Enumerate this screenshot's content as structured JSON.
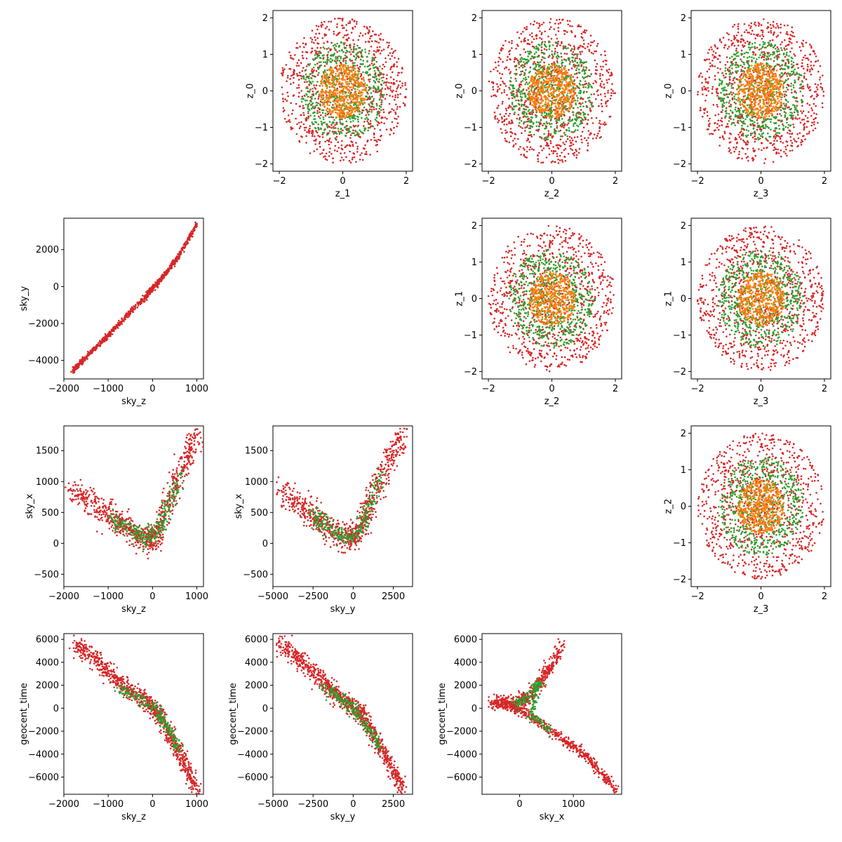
{
  "chart_data": {
    "type": "scatter",
    "colors": {
      "outer": "#d62728",
      "middle": "#2ca02c",
      "inner": "#ff7f0e"
    },
    "panels": [
      {
        "id": "z1-z0",
        "row": 0,
        "col": 1,
        "xlabel": "z_1",
        "ylabel": "z_0",
        "xlim": [
          -2.2,
          2.2
        ],
        "ylim": [
          -2.2,
          2.2
        ],
        "xticks": [
          -2,
          0,
          2
        ],
        "yticks": [
          -2,
          -1,
          0,
          1,
          2
        ],
        "series": [
          {
            "name": "",
            "color": "#d62728",
            "shape": "disk",
            "radius": [
              0,
              2.0
            ],
            "count": 900
          },
          {
            "name": "",
            "color": "#2ca02c",
            "shape": "disk",
            "radius": [
              0,
              1.35
            ],
            "count": 600
          },
          {
            "name": "",
            "color": "#ff7f0e",
            "shape": "disk",
            "radius": [
              0,
              0.75
            ],
            "count": 500
          }
        ]
      },
      {
        "id": "z2-z0",
        "row": 0,
        "col": 2,
        "xlabel": "z_2",
        "ylabel": "z_0",
        "xlim": [
          -2.2,
          2.2
        ],
        "ylim": [
          -2.2,
          2.2
        ],
        "xticks": [
          -2,
          0,
          2
        ],
        "yticks": [
          -2,
          -1,
          0,
          1,
          2
        ],
        "series": [
          {
            "name": "",
            "color": "#d62728",
            "shape": "disk",
            "radius": [
              0,
              2.0
            ],
            "count": 900
          },
          {
            "name": "",
            "color": "#2ca02c",
            "shape": "disk",
            "radius": [
              0,
              1.35
            ],
            "count": 600
          },
          {
            "name": "",
            "color": "#ff7f0e",
            "shape": "disk",
            "radius": [
              0,
              0.75
            ],
            "count": 500
          }
        ]
      },
      {
        "id": "z3-z0",
        "row": 0,
        "col": 3,
        "xlabel": "z_3",
        "ylabel": "z_0",
        "xlim": [
          -2.2,
          2.2
        ],
        "ylim": [
          -2.2,
          2.2
        ],
        "xticks": [
          -2,
          0,
          2
        ],
        "yticks": [
          -2,
          -1,
          0,
          1,
          2
        ],
        "series": [
          {
            "name": "",
            "color": "#d62728",
            "shape": "disk",
            "radius": [
              0,
              2.0
            ],
            "count": 900
          },
          {
            "name": "",
            "color": "#2ca02c",
            "shape": "disk",
            "radius": [
              0,
              1.35
            ],
            "count": 600
          },
          {
            "name": "",
            "color": "#ff7f0e",
            "shape": "disk",
            "radius": [
              0,
              0.75
            ],
            "count": 500
          }
        ]
      },
      {
        "id": "skyz-skyy",
        "row": 1,
        "col": 0,
        "xlabel": "sky_z",
        "ylabel": "sky_y",
        "xlim": [
          -2000,
          1150
        ],
        "ylim": [
          -5000,
          3700
        ],
        "xticks": [
          -2000,
          -1000,
          0,
          1000
        ],
        "yticks": [
          -4000,
          -2000,
          0,
          2000
        ],
        "series": [
          {
            "name": "",
            "color": "#d62728",
            "shape": "curve",
            "count": 900,
            "curve": [
              [
                -1820,
                -4620
              ],
              [
                -1400,
                -3600
              ],
              [
                -1000,
                -2650
              ],
              [
                -600,
                -1650
              ],
              [
                -200,
                -650
              ],
              [
                0,
                -100
              ],
              [
                300,
                700
              ],
              [
                600,
                1700
              ],
              [
                1000,
                3350
              ]
            ],
            "spread": 70
          }
        ]
      },
      {
        "id": "z2-z1",
        "row": 1,
        "col": 2,
        "xlabel": "z_2",
        "ylabel": "z_1",
        "xlim": [
          -2.2,
          2.2
        ],
        "ylim": [
          -2.2,
          2.2
        ],
        "xticks": [
          -2,
          0,
          2
        ],
        "yticks": [
          -2,
          -1,
          0,
          1,
          2
        ],
        "series": [
          {
            "name": "",
            "color": "#d62728",
            "shape": "disk",
            "radius": [
              0,
              2.0
            ],
            "count": 900
          },
          {
            "name": "",
            "color": "#2ca02c",
            "shape": "disk",
            "radius": [
              0,
              1.35
            ],
            "count": 600
          },
          {
            "name": "",
            "color": "#ff7f0e",
            "shape": "disk",
            "radius": [
              0,
              0.75
            ],
            "count": 500
          }
        ]
      },
      {
        "id": "z3-z1",
        "row": 1,
        "col": 3,
        "xlabel": "z_3",
        "ylabel": "z_1",
        "xlim": [
          -2.2,
          2.2
        ],
        "ylim": [
          -2.2,
          2.2
        ],
        "xticks": [
          -2,
          0,
          2
        ],
        "yticks": [
          -2,
          -1,
          0,
          1,
          2
        ],
        "series": [
          {
            "name": "",
            "color": "#d62728",
            "shape": "disk",
            "radius": [
              0,
              2.0
            ],
            "count": 900
          },
          {
            "name": "",
            "color": "#2ca02c",
            "shape": "disk",
            "radius": [
              0,
              1.35
            ],
            "count": 600
          },
          {
            "name": "",
            "color": "#ff7f0e",
            "shape": "disk",
            "radius": [
              0,
              0.75
            ],
            "count": 500
          }
        ]
      },
      {
        "id": "skyz-skyx",
        "row": 2,
        "col": 0,
        "xlabel": "sky_z",
        "ylabel": "sky_x",
        "xlim": [
          -2000,
          1150
        ],
        "ylim": [
          -700,
          1900
        ],
        "xticks": [
          -2000,
          -1000,
          0,
          1000
        ],
        "yticks": [
          -500,
          0,
          500,
          1000,
          1500
        ],
        "series": [
          {
            "name": "",
            "color": "#d62728",
            "shape": "curve",
            "count": 800,
            "curve": [
              [
                -1800,
                880
              ],
              [
                -1300,
                620
              ],
              [
                -900,
                400
              ],
              [
                -500,
                220
              ],
              [
                -150,
                60
              ],
              [
                50,
                100
              ],
              [
                250,
                450
              ],
              [
                500,
                950
              ],
              [
                800,
                1400
              ],
              [
                1000,
                1780
              ]
            ],
            "spread": 110
          },
          {
            "name": "",
            "color": "#2ca02c",
            "shape": "curve",
            "count": 250,
            "curve": [
              [
                -1000,
                450
              ],
              [
                -600,
                280
              ],
              [
                -200,
                80
              ],
              [
                100,
                150
              ],
              [
                350,
                550
              ],
              [
                650,
                1150
              ]
            ],
            "spread": 80
          }
        ]
      },
      {
        "id": "skyy-skyx",
        "row": 2,
        "col": 1,
        "xlabel": "sky_y",
        "ylabel": "sky_x",
        "xlim": [
          -5000,
          3700
        ],
        "ylim": [
          -700,
          1900
        ],
        "xticks": [
          -5000,
          -2500,
          0,
          2500
        ],
        "yticks": [
          -500,
          0,
          500,
          1000,
          1500
        ],
        "series": [
          {
            "name": "",
            "color": "#d62728",
            "shape": "curve",
            "count": 800,
            "curve": [
              [
                -4600,
                880
              ],
              [
                -3300,
                620
              ],
              [
                -2300,
                400
              ],
              [
                -1300,
                220
              ],
              [
                -400,
                60
              ],
              [
                200,
                120
              ],
              [
                800,
                480
              ],
              [
                1500,
                950
              ],
              [
                2300,
                1380
              ],
              [
                3100,
                1780
              ]
            ],
            "spread": 110
          },
          {
            "name": "",
            "color": "#2ca02c",
            "shape": "curve",
            "count": 250,
            "curve": [
              [
                -2600,
                460
              ],
              [
                -1500,
                270
              ],
              [
                -500,
                80
              ],
              [
                300,
                170
              ],
              [
                1000,
                560
              ],
              [
                1800,
                1150
              ]
            ],
            "spread": 80
          }
        ]
      },
      {
        "id": "z3-z2",
        "row": 2,
        "col": 3,
        "xlabel": "z_3",
        "ylabel": "z_2",
        "xlim": [
          -2.2,
          2.2
        ],
        "ylim": [
          -2.2,
          2.2
        ],
        "xticks": [
          -2,
          0,
          2
        ],
        "yticks": [
          -2,
          -1,
          0,
          1,
          2
        ],
        "series": [
          {
            "name": "",
            "color": "#d62728",
            "shape": "disk",
            "radius": [
              0,
              2.0
            ],
            "count": 900
          },
          {
            "name": "",
            "color": "#2ca02c",
            "shape": "disk",
            "radius": [
              0,
              1.35
            ],
            "count": 600
          },
          {
            "name": "",
            "color": "#ff7f0e",
            "shape": "disk",
            "radius": [
              0,
              0.75
            ],
            "count": 500
          }
        ]
      },
      {
        "id": "skyz-geocent",
        "row": 3,
        "col": 0,
        "xlabel": "sky_z",
        "ylabel": "geocent_time",
        "xlim": [
          -2000,
          1150
        ],
        "ylim": [
          -7500,
          6500
        ],
        "xticks": [
          -2000,
          -1000,
          0,
          1000
        ],
        "yticks": [
          -6000,
          -4000,
          -2000,
          0,
          2000,
          4000,
          6000
        ],
        "series": [
          {
            "name": "",
            "color": "#d62728",
            "shape": "curve",
            "count": 900,
            "curve": [
              [
                -1800,
                5800
              ],
              [
                -1300,
                4300
              ],
              [
                -900,
                2800
              ],
              [
                -500,
                1500
              ],
              [
                -100,
                500
              ],
              [
                200,
                -700
              ],
              [
                450,
                -2800
              ],
              [
                700,
                -4600
              ],
              [
                1000,
                -7100
              ]
            ],
            "spread": 420
          },
          {
            "name": "",
            "color": "#2ca02c",
            "shape": "curve",
            "count": 200,
            "curve": [
              [
                -800,
                1800
              ],
              [
                -300,
                900
              ],
              [
                100,
                -200
              ],
              [
                350,
                -1800
              ],
              [
                600,
                -3600
              ]
            ],
            "spread": 300
          }
        ]
      },
      {
        "id": "skyy-geocent",
        "row": 3,
        "col": 1,
        "xlabel": "sky_y",
        "ylabel": "geocent_time",
        "xlim": [
          -5000,
          3700
        ],
        "ylim": [
          -7500,
          6500
        ],
        "xticks": [
          -5000,
          -2500,
          0,
          2500
        ],
        "yticks": [
          -6000,
          -4000,
          -2000,
          0,
          2000,
          4000,
          6000
        ],
        "series": [
          {
            "name": "",
            "color": "#d62728",
            "shape": "curve",
            "count": 900,
            "curve": [
              [
                -4600,
                5800
              ],
              [
                -3400,
                4300
              ],
              [
                -2300,
                2800
              ],
              [
                -1300,
                1500
              ],
              [
                -300,
                400
              ],
              [
                600,
                -600
              ],
              [
                1400,
                -2700
              ],
              [
                2200,
                -4700
              ],
              [
                3100,
                -7100
              ]
            ],
            "spread": 420
          },
          {
            "name": "",
            "color": "#2ca02c",
            "shape": "curve",
            "count": 200,
            "curve": [
              [
                -2000,
                2000
              ],
              [
                -800,
                900
              ],
              [
                200,
                -200
              ],
              [
                1000,
                -1800
              ],
              [
                1800,
                -3600
              ]
            ],
            "spread": 300
          }
        ]
      },
      {
        "id": "skyx-geocent",
        "row": 3,
        "col": 2,
        "xlabel": "sky_x",
        "ylabel": "geocent_time",
        "xlim": [
          -700,
          1900
        ],
        "ylim": [
          -7500,
          6500
        ],
        "xticks": [
          0,
          1000
        ],
        "yticks": [
          -6000,
          -4000,
          -2000,
          0,
          2000,
          4000,
          6000
        ],
        "series": [
          {
            "name": "",
            "color": "#d62728",
            "shape": "curve",
            "count": 450,
            "curve": [
              [
                -450,
                700
              ],
              [
                -100,
                400
              ],
              [
                150,
                800
              ],
              [
                350,
                2000
              ],
              [
                550,
                3400
              ],
              [
                800,
                5600
              ]
            ],
            "spread": 300
          },
          {
            "name": "",
            "color": "#d62728",
            "shape": "curve",
            "count": 550,
            "curve": [
              [
                -600,
                500
              ],
              [
                -200,
                200
              ],
              [
                100,
                -400
              ],
              [
                400,
                -1400
              ],
              [
                800,
                -2700
              ],
              [
                1200,
                -4000
              ],
              [
                1500,
                -5600
              ],
              [
                1820,
                -7150
              ]
            ],
            "spread": 220
          },
          {
            "name": "",
            "color": "#2ca02c",
            "shape": "curve",
            "count": 200,
            "curve": [
              [
                -100,
                300
              ],
              [
                150,
                1000
              ],
              [
                400,
                2200
              ],
              [
                200,
                -500
              ],
              [
                600,
                -2000
              ]
            ],
            "spread": 260
          }
        ]
      }
    ]
  }
}
